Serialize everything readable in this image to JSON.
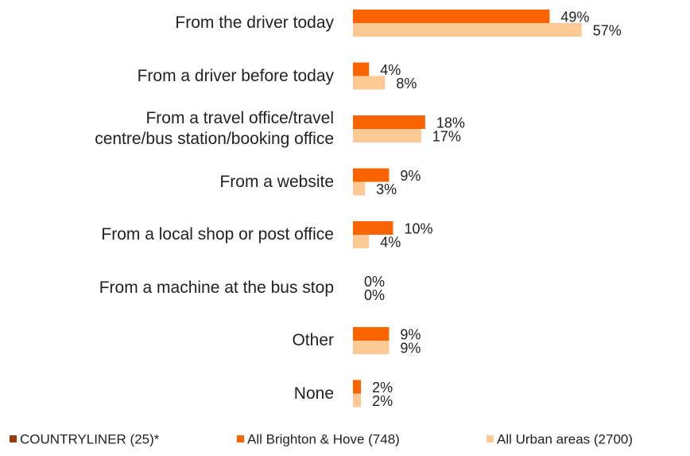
{
  "chart_data": {
    "type": "bar",
    "orientation": "horizontal",
    "categories": [
      "From the driver today",
      "From a driver before today",
      "From a travel office/travel\ncentre/bus station/booking office",
      "From a website",
      "From a local shop or post office",
      "From a machine at the bus stop",
      "Other",
      "None"
    ],
    "xlim": [
      0,
      84
    ],
    "series": [
      {
        "name": "COUNTRYLINER (25)*",
        "color": "#9b3a0c",
        "values": [
          null,
          null,
          null,
          null,
          null,
          null,
          null,
          null
        ]
      },
      {
        "name": "All Brighton & Hove (748)",
        "color": "#fa6400",
        "values": [
          49,
          4,
          18,
          9,
          10,
          0,
          9,
          2
        ],
        "value_labels": [
          "49%",
          "4%",
          "18%",
          "9%",
          "10%",
          "0%",
          "9%",
          "2%"
        ]
      },
      {
        "name": "All Urban areas (2700)",
        "color": "#fcc894",
        "values": [
          57,
          8,
          17,
          3,
          4,
          0,
          9,
          2
        ],
        "value_labels": [
          "57%",
          "8%",
          "17%",
          "3%",
          "4%",
          "0%",
          "9%",
          "2%"
        ]
      }
    ]
  }
}
